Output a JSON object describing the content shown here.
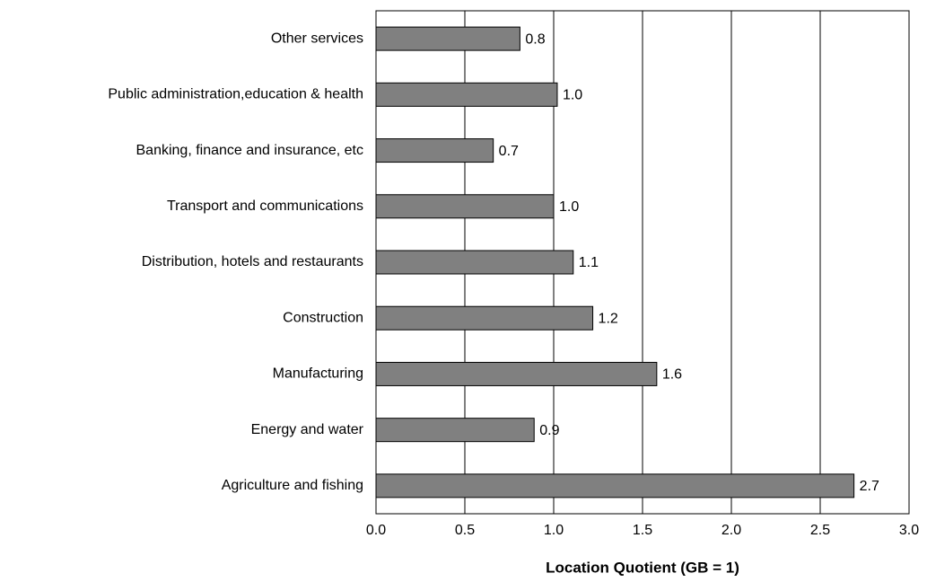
{
  "chart_data": {
    "type": "barh",
    "x_label": "Location Quotient (GB = 1)",
    "categories": [
      "Other services",
      "Public administration,education & health",
      "Banking, finance and insurance, etc",
      "Transport and communications",
      "Distribution, hotels and restaurants",
      "Construction",
      "Manufacturing",
      "Energy and water",
      "Agriculture and fishing"
    ],
    "values": [
      0.81,
      1.02,
      0.66,
      1.0,
      1.11,
      1.22,
      1.58,
      0.89,
      2.69
    ],
    "value_labels": [
      "0.8",
      "1.0",
      "0.7",
      "1.0",
      "1.1",
      "1.2",
      "1.6",
      "0.9",
      "2.7"
    ],
    "color": "#808080",
    "xlim": [
      0,
      3
    ],
    "xticks": [
      {
        "value": 0,
        "label": "0.0"
      },
      {
        "value": 0.5,
        "label": "0.5"
      },
      {
        "value": 1,
        "label": "1.0"
      },
      {
        "value": 1.5,
        "label": "1.5"
      },
      {
        "value": 2,
        "label": "2.0"
      },
      {
        "value": 2.5,
        "label": "2.5"
      },
      {
        "value": 3,
        "label": "3.0"
      }
    ],
    "grid": true
  }
}
